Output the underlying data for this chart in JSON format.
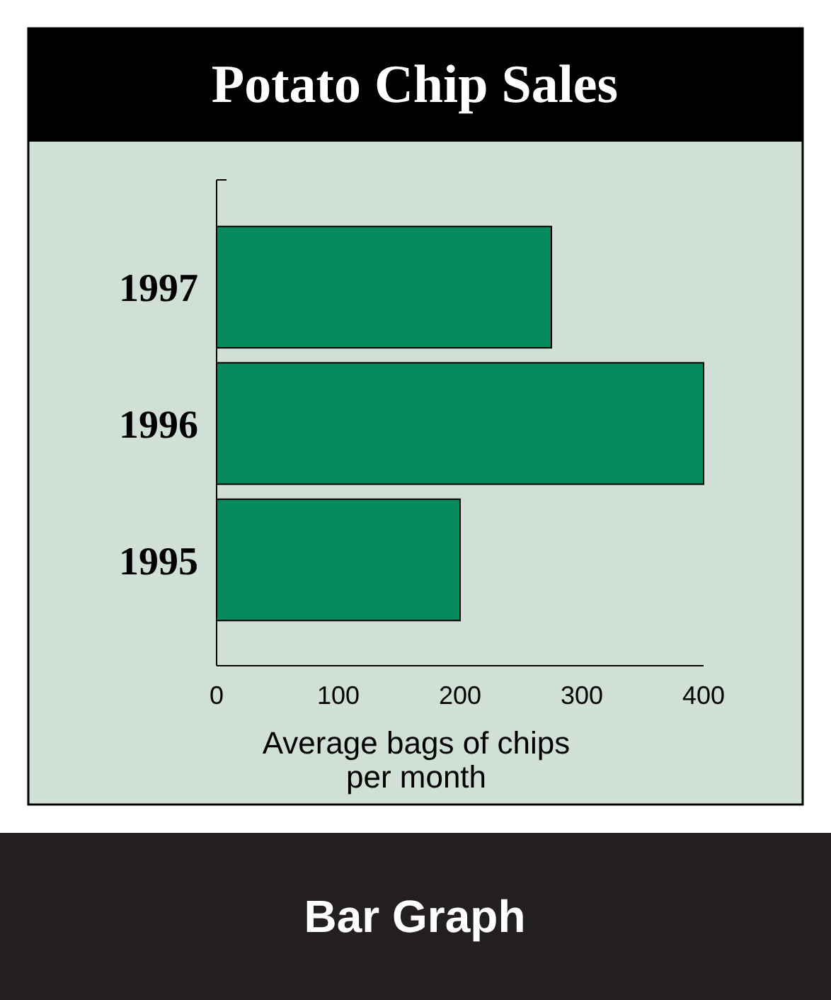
{
  "chart_data": {
    "type": "bar",
    "orientation": "horizontal",
    "title": "Potato Chip Sales",
    "xlabel": "Average bags of chips\nper month",
    "categories": [
      "1997",
      "1996",
      "1995"
    ],
    "values": [
      275,
      400,
      200
    ],
    "color": "#078a5f",
    "xlim": [
      0,
      400
    ],
    "xticks": [
      0,
      100,
      200,
      300,
      400
    ],
    "grid": false,
    "annotations": [
      "Bar Graph"
    ]
  }
}
